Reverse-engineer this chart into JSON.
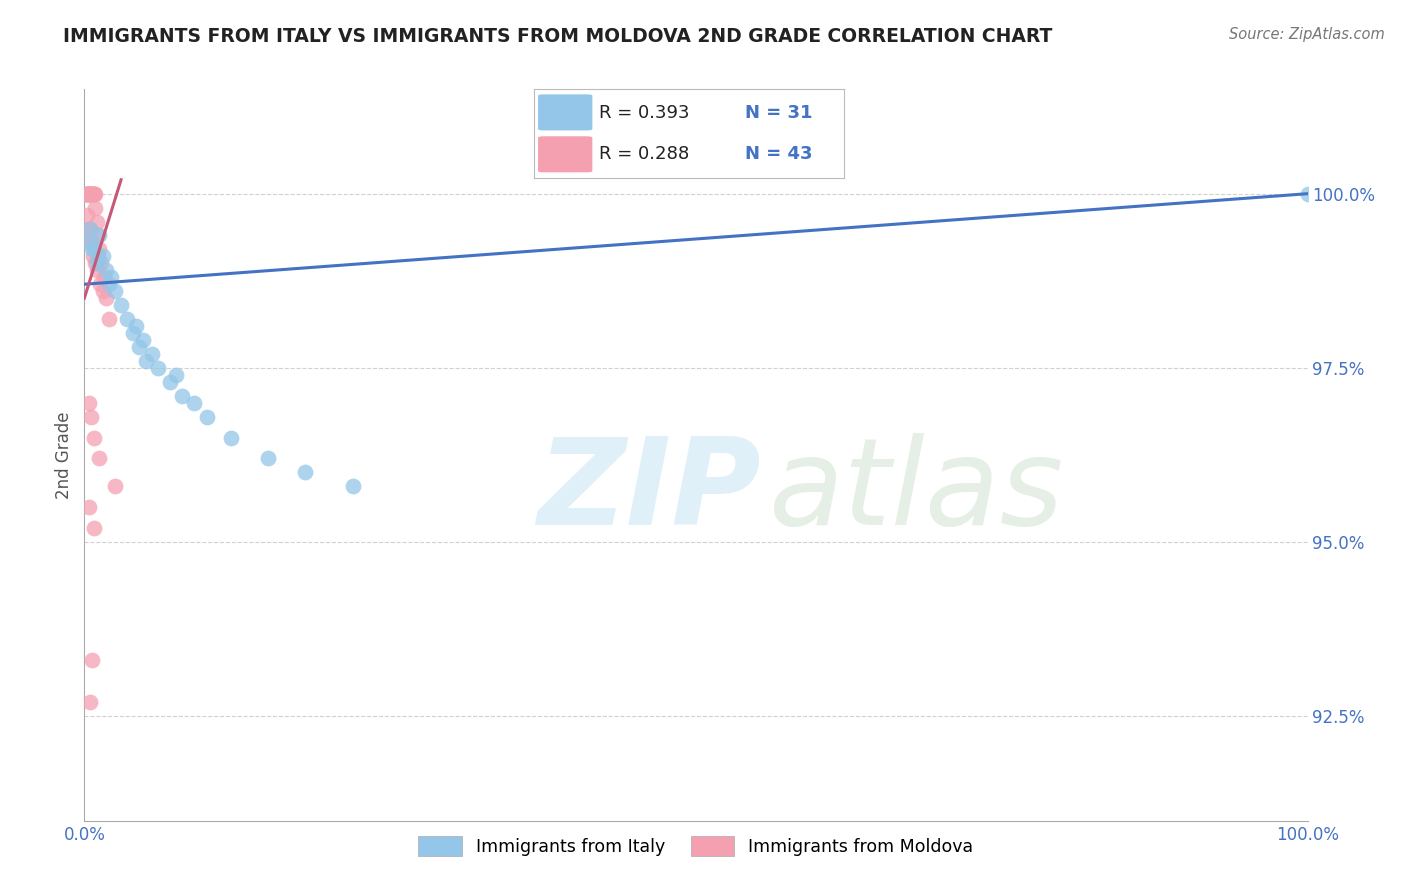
{
  "title": "IMMIGRANTS FROM ITALY VS IMMIGRANTS FROM MOLDOVA 2ND GRADE CORRELATION CHART",
  "source": "Source: ZipAtlas.com",
  "ylabel": "2nd Grade",
  "y_ticks": [
    92.5,
    95.0,
    97.5,
    100.0
  ],
  "y_tick_labels": [
    "92.5%",
    "95.0%",
    "97.5%",
    "100.0%"
  ],
  "xlim": [
    0.0,
    100.0
  ],
  "ylim": [
    91.0,
    101.5
  ],
  "legend_italy_r": "R = 0.393",
  "legend_italy_n": "N = 31",
  "legend_moldova_r": "R = 0.288",
  "legend_moldova_n": "N = 43",
  "italy_color": "#93C6E8",
  "moldova_color": "#F4A0B0",
  "italy_trend_color": "#4472C4",
  "moldova_trend_color": "#C55A78",
  "background_color": "#FFFFFF",
  "italy_x": [
    0.3,
    0.5,
    0.8,
    1.0,
    1.2,
    1.5,
    1.8,
    2.0,
    2.2,
    2.5,
    3.0,
    3.5,
    4.0,
    4.5,
    5.0,
    6.0,
    7.0,
    8.0,
    9.0,
    10.0,
    12.0,
    15.0,
    18.0,
    22.0,
    4.2,
    4.8,
    5.5,
    7.5,
    0.6,
    1.1,
    100.0
  ],
  "italy_y": [
    99.3,
    99.5,
    99.2,
    99.0,
    99.4,
    99.1,
    98.9,
    98.7,
    98.8,
    98.6,
    98.4,
    98.2,
    98.0,
    97.8,
    97.6,
    97.5,
    97.3,
    97.1,
    97.0,
    96.8,
    96.5,
    96.2,
    96.0,
    95.8,
    98.1,
    97.9,
    97.7,
    97.4,
    99.2,
    99.1,
    100.0
  ],
  "moldova_x": [
    0.1,
    0.15,
    0.2,
    0.25,
    0.3,
    0.35,
    0.4,
    0.45,
    0.5,
    0.55,
    0.6,
    0.65,
    0.7,
    0.75,
    0.8,
    0.85,
    0.9,
    1.0,
    1.1,
    1.2,
    1.4,
    1.6,
    1.8,
    2.0,
    0.3,
    0.5,
    0.7,
    1.0,
    1.5,
    0.25,
    0.45,
    0.6,
    0.9,
    1.3,
    0.35,
    0.55,
    0.8,
    1.2,
    2.5,
    0.4,
    0.65,
    0.5,
    0.75
  ],
  "moldova_y": [
    100.0,
    100.0,
    100.0,
    100.0,
    100.0,
    100.0,
    100.0,
    100.0,
    100.0,
    100.0,
    100.0,
    100.0,
    100.0,
    100.0,
    100.0,
    100.0,
    99.8,
    99.6,
    99.4,
    99.2,
    99.0,
    98.8,
    98.5,
    98.2,
    99.5,
    99.3,
    99.1,
    98.9,
    98.6,
    99.7,
    99.5,
    99.3,
    99.0,
    98.7,
    97.0,
    96.8,
    96.5,
    96.2,
    95.8,
    95.5,
    93.3,
    92.7,
    95.2
  ],
  "italy_trend_x": [
    0.0,
    100.0
  ],
  "italy_trend_y": [
    98.7,
    100.0
  ],
  "moldova_trend_x": [
    0.0,
    3.0
  ],
  "moldova_trend_y": [
    98.5,
    100.2
  ]
}
